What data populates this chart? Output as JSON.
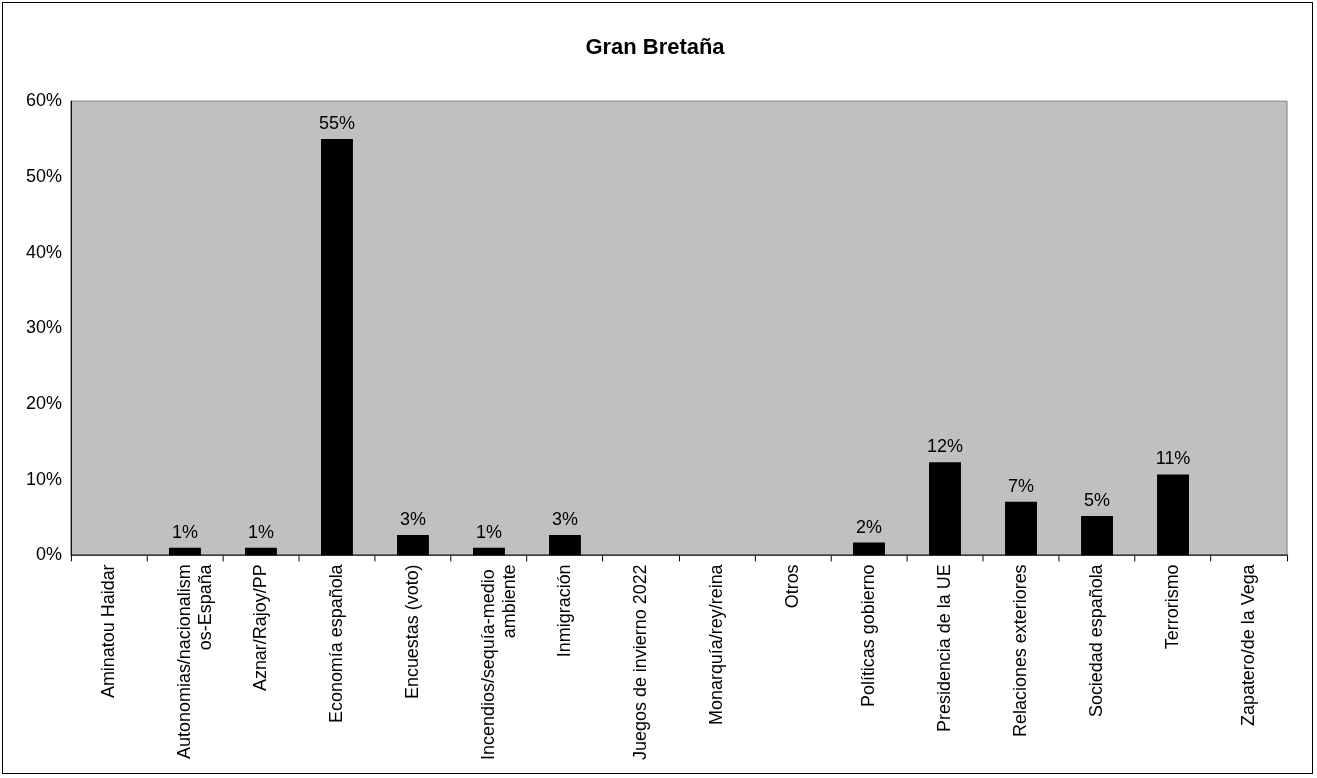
{
  "chart_data": {
    "type": "bar",
    "title": "Gran Bretaña",
    "categories": [
      "Aminatou Haidar",
      "Autonomias/nacionalismos-España",
      "Aznar/Rajoy/PP",
      "Economía española",
      "Encuestas (voto)",
      "Incendios/sequía-medio ambiente",
      "Inmigración",
      "Juegos de invierno 2022",
      "Monarquía/rey/reina",
      "Otros",
      "Políticas gobierno",
      "Presidencia de la UE",
      "Relaciones exteriores",
      "Sociedad española",
      "Terrorismo",
      "Zapatero/de la Vega"
    ],
    "values": [
      0,
      1,
      1,
      55,
      2.7,
      1,
      2.7,
      0,
      0,
      0,
      1.7,
      12.3,
      7.1,
      5.2,
      10.7,
      0
    ],
    "value_labels": [
      null,
      "1%",
      "1%",
      "55%",
      "3%",
      "1%",
      "3%",
      null,
      null,
      null,
      "2%",
      "12%",
      "7%",
      "5%",
      "11%",
      null
    ],
    "color": "#000000",
    "ylim": [
      0,
      60
    ],
    "yticks": [
      {
        "value": 0,
        "label": "0%"
      },
      {
        "value": 10,
        "label": "10%"
      },
      {
        "value": 20,
        "label": "20%"
      },
      {
        "value": 30,
        "label": "30%"
      },
      {
        "value": 40,
        "label": "40%"
      },
      {
        "value": 50,
        "label": "50%"
      },
      {
        "value": 60,
        "label": "60%"
      }
    ],
    "grid": false,
    "legend": false
  }
}
